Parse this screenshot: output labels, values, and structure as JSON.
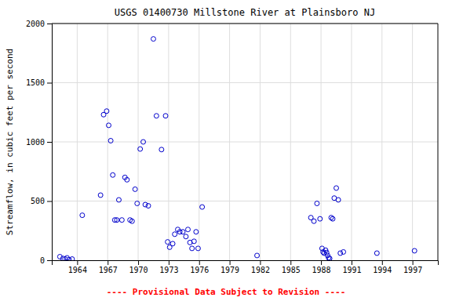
{
  "chart_data": {
    "type": "scatter",
    "title": "USGS 01400730 Millstone River at Plainsboro NJ",
    "ylabel": "Streamflow, in cubic feet per second",
    "annotations": [
      "---- Provisional Data Subject to Revision ----"
    ],
    "x": [
      1962.3,
      1962.6,
      1962.8,
      1963.0,
      1963.2,
      1963.5,
      1964.5,
      1966.3,
      1966.6,
      1966.9,
      1967.1,
      1967.3,
      1967.5,
      1967.7,
      1967.9,
      1968.1,
      1968.4,
      1968.7,
      1968.9,
      1969.2,
      1969.4,
      1969.7,
      1969.9,
      1970.2,
      1970.5,
      1970.7,
      1971.0,
      1971.5,
      1971.8,
      1972.3,
      1972.7,
      1972.9,
      1973.1,
      1973.4,
      1973.6,
      1973.9,
      1974.1,
      1974.4,
      1974.7,
      1974.9,
      1975.1,
      1975.3,
      1975.5,
      1975.7,
      1975.9,
      1976.3,
      1981.7,
      1987.0,
      1987.3,
      1987.6,
      1987.9,
      1988.1,
      1988.2,
      1988.3,
      1988.45,
      1988.55,
      1988.65,
      1988.75,
      1988.85,
      1989.0,
      1989.15,
      1989.3,
      1989.5,
      1989.7,
      1989.9,
      1990.2,
      1993.5,
      1997.2
    ],
    "values": [
      30,
      15,
      10,
      20,
      5,
      10,
      380,
      550,
      1230,
      1260,
      1140,
      1010,
      720,
      340,
      340,
      510,
      340,
      700,
      680,
      340,
      330,
      600,
      480,
      940,
      1000,
      470,
      460,
      1870,
      1220,
      935,
      1220,
      155,
      110,
      140,
      220,
      260,
      240,
      240,
      200,
      260,
      150,
      100,
      160,
      240,
      100,
      450,
      40,
      360,
      330,
      480,
      350,
      100,
      70,
      60,
      85,
      65,
      40,
      20,
      15,
      360,
      350,
      525,
      610,
      510,
      60,
      70,
      60,
      80
    ],
    "color": "#0000cc",
    "marker": "circle",
    "xlim": [
      1961.5,
      1999.5
    ],
    "ylim": [
      0,
      2000
    ],
    "xticks": [
      1964,
      1967,
      1970,
      1973,
      1976,
      1979,
      1982,
      1985,
      1988,
      1991,
      1994,
      1997
    ],
    "yticks": [
      0,
      500,
      1000,
      1500,
      2000
    ],
    "grid": true
  }
}
